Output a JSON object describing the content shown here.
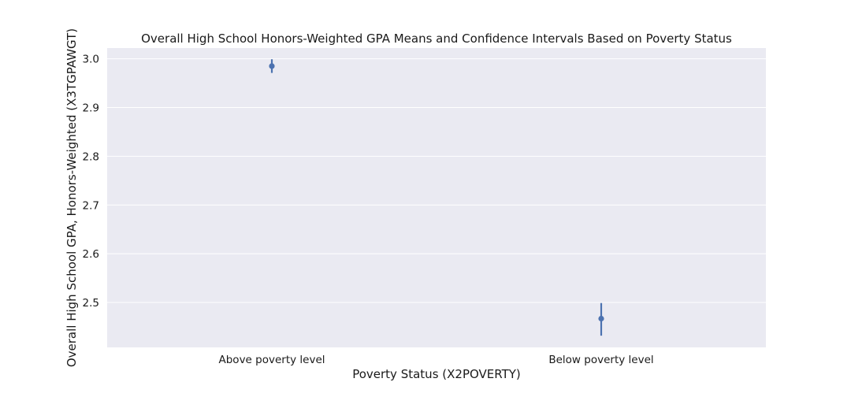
{
  "chart_data": {
    "type": "point",
    "title": "Overall High School Honors-Weighted GPA Means and Confidence Intervals Based on Poverty Status",
    "xlabel": "Poverty Status (X2POVERTY)",
    "ylabel": "Overall High School GPA, Honors-Weighted (X3TGPAWGT)",
    "categories": [
      "Above poverty level",
      "Below poverty level"
    ],
    "series": [
      {
        "means": [
          2.985,
          2.467
        ],
        "ci_low": [
          2.971,
          2.432
        ],
        "ci_high": [
          2.999,
          2.499
        ]
      }
    ],
    "ylim": [
      2.408,
      3.022
    ],
    "yticks": [
      2.5,
      2.6,
      2.7,
      2.8,
      2.9,
      3.0
    ],
    "ytick_labels": [
      "2.5",
      "2.6",
      "2.7",
      "2.8",
      "2.9",
      "3.0"
    ],
    "grid": true,
    "colors": {
      "point": "#4c72b0",
      "plot_background": "#eaeaf2",
      "grid": "#ffffff"
    }
  }
}
